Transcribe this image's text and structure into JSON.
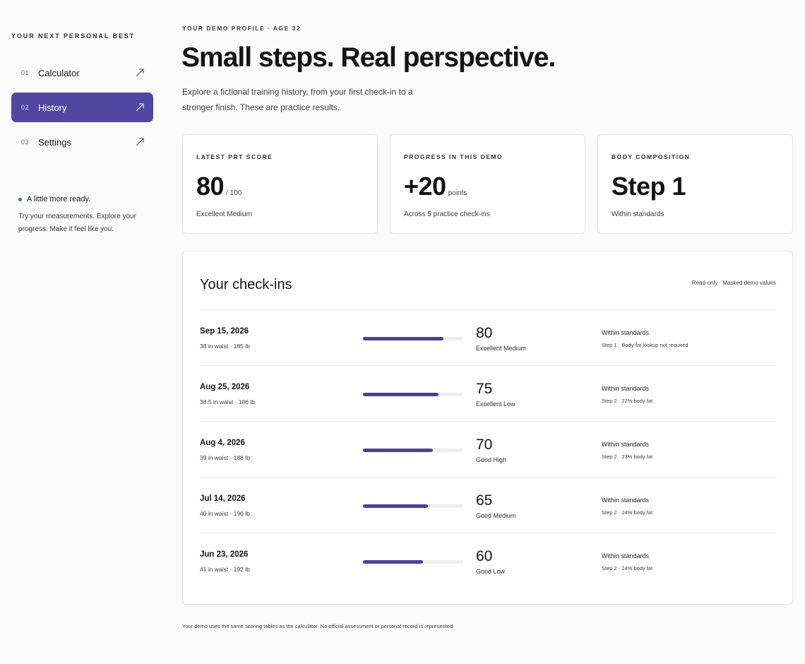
{
  "sidebar": {
    "brand": "YOUR NEXT PERSONAL BEST",
    "items": [
      {
        "num": "01",
        "label": "Calculator",
        "active": false
      },
      {
        "num": "02",
        "label": "History",
        "active": true
      },
      {
        "num": "03",
        "label": "Settings",
        "active": false
      }
    ],
    "status_title": "A little more ready.",
    "status_text": "Try your measurements. Explore your progress. Make it feel like you."
  },
  "main": {
    "eyebrow": "YOUR DEMO PROFILE · AGE 32",
    "title": "Small steps. Real perspective.",
    "intro": "Explore a fictional training history, from your first check-in to a stronger finish. These are practice results.",
    "stats": [
      {
        "label": "LATEST PRT SCORE",
        "value": "80",
        "unit": "/ 100",
        "note": "Excellent Medium"
      },
      {
        "label": "PROGRESS IN THIS DEMO",
        "value": "+20",
        "unit": "points",
        "note": "Across 5 practice check-ins"
      },
      {
        "label": "BODY COMPOSITION",
        "value": "Step 1",
        "unit": "",
        "note": "Within standards"
      }
    ],
    "checkins": {
      "title": "Your check-ins",
      "meta": "Read-only · Masked demo values",
      "rows": [
        {
          "date": "Sep 15, 2026",
          "measurements": "38 in waist · 185 lb",
          "score": "80",
          "score_value": 80,
          "grade": "Excellent Medium",
          "standard": "Within standards",
          "step": "Step 1 · Body-fat lookup not required"
        },
        {
          "date": "Aug 25, 2026",
          "measurements": "38.5 in waist · 186 lb",
          "score": "75",
          "score_value": 75,
          "grade": "Excellent Low",
          "standard": "Within standards",
          "step": "Step 2 · 22% body fat"
        },
        {
          "date": "Aug 4, 2026",
          "measurements": "39 in waist · 188 lb",
          "score": "70",
          "score_value": 70,
          "grade": "Good High",
          "standard": "Within standards",
          "step": "Step 2 · 23% body fat"
        },
        {
          "date": "Jul 14, 2026",
          "measurements": "40 in waist · 190 lb",
          "score": "65",
          "score_value": 65,
          "grade": "Good Medium",
          "standard": "Within standards",
          "step": "Step 2 · 24% body fat"
        },
        {
          "date": "Jun 23, 2026",
          "measurements": "41 in waist · 192 lb",
          "score": "60",
          "score_value": 60,
          "grade": "Good Low",
          "standard": "Within standards",
          "step": "Step 2 · 24% body fat"
        }
      ]
    },
    "footer": "Your demo uses the same scoring tables as the calculator. No official assessment or personal record is represented."
  },
  "colors": {
    "accent": "#5346a3",
    "bar_fill": "#4b3f99",
    "status_dot": "#2a8a3c"
  },
  "icons": {
    "nav_arrow": "arrow-up-right-icon",
    "status": "status-dot-icon"
  }
}
